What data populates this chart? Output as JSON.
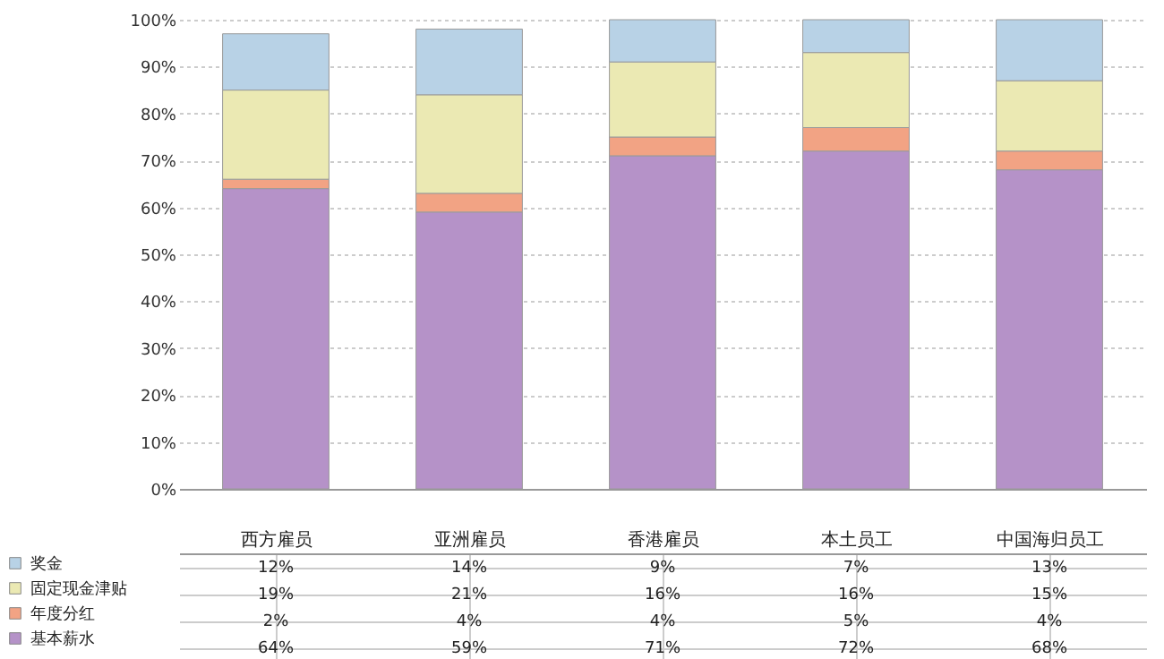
{
  "chart_data": {
    "type": "bar",
    "stacked": true,
    "categories": [
      "西方雇员",
      "亚洲雇员",
      "香港雇员",
      "本土员工",
      "中国海归员工"
    ],
    "series": [
      {
        "name": "基本薪水",
        "color": "#b592c8",
        "values": [
          64,
          59,
          71,
          72,
          68
        ],
        "value_labels": [
          "64%",
          "59%",
          "71%",
          "72%",
          "68%"
        ]
      },
      {
        "name": "年度分红",
        "color": "#f2a384",
        "values": [
          2,
          4,
          4,
          5,
          4
        ],
        "value_labels": [
          "2%",
          "4%",
          "4%",
          "5%",
          "4%"
        ]
      },
      {
        "name": "固定现金津贴",
        "color": "#ebe9b3",
        "values": [
          19,
          21,
          16,
          16,
          15
        ],
        "value_labels": [
          "19%",
          "21%",
          "16%",
          "16%",
          "15%"
        ]
      },
      {
        "name": "奖金",
        "color": "#b8d2e6",
        "values": [
          12,
          14,
          9,
          7,
          13
        ],
        "value_labels": [
          "12%",
          "14%",
          "9%",
          "7%",
          "13%"
        ]
      }
    ],
    "ylim": [
      0,
      100
    ],
    "yticks": [
      {
        "value": 0,
        "label": "0%"
      },
      {
        "value": 10,
        "label": "10%"
      },
      {
        "value": 20,
        "label": "20%"
      },
      {
        "value": 30,
        "label": "30%"
      },
      {
        "value": 40,
        "label": "40%"
      },
      {
        "value": 50,
        "label": "50%"
      },
      {
        "value": 60,
        "label": "60%"
      },
      {
        "value": 70,
        "label": "70%"
      },
      {
        "value": 80,
        "label": "80%"
      },
      {
        "value": 90,
        "label": "90%"
      },
      {
        "value": 100,
        "label": "100%"
      }
    ],
    "grid": "y",
    "legend": "bottom left"
  }
}
